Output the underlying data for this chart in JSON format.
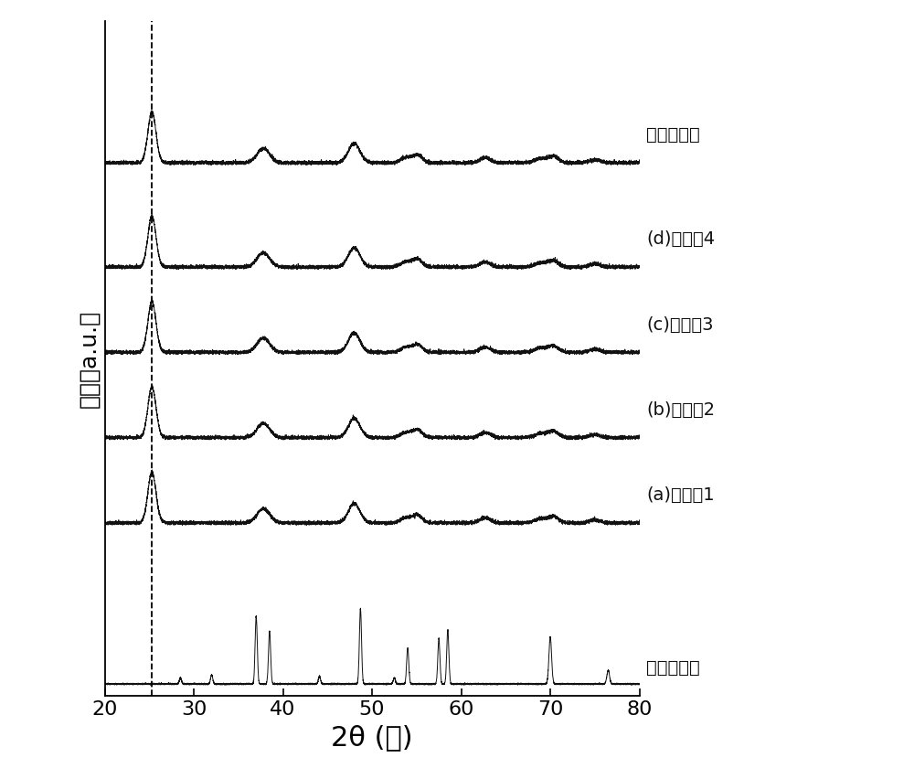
{
  "xlabel": "2θ (度)",
  "ylabel": "强度（a.u.）",
  "xlim": [
    20,
    80
  ],
  "xlabel_fontsize": 22,
  "ylabel_fontsize": 18,
  "tick_fontsize": 16,
  "label_fontsize": 13,
  "dashed_line_x": 25.3,
  "background_color": "#ffffff",
  "curve_color": "#111111",
  "labels": [
    "纯二氧化馒",
    "(d)实施兦4",
    "(c)实施兦3",
    "(b)实施兦2",
    "(a)实施兦1",
    "纯二硫化馒"
  ],
  "offsets": [
    5.5,
    4.4,
    3.5,
    2.6,
    1.7,
    0.0
  ],
  "tio2_peaks": [
    25.3,
    37.8,
    48.0,
    53.8,
    55.1,
    62.7,
    68.8,
    70.3,
    75.0
  ],
  "tio2_heights": [
    1.0,
    0.28,
    0.38,
    0.1,
    0.15,
    0.1,
    0.08,
    0.13,
    0.06
  ],
  "tio2_widths": [
    0.45,
    0.7,
    0.65,
    0.6,
    0.55,
    0.6,
    0.6,
    0.6,
    0.6
  ],
  "tis2_peaks": [
    28.5,
    32.0,
    37.0,
    38.5,
    44.1,
    48.7,
    52.5,
    54.0,
    57.5,
    58.5,
    70.0,
    76.5
  ],
  "tis2_heights": [
    0.08,
    0.12,
    0.9,
    0.7,
    0.1,
    1.0,
    0.08,
    0.48,
    0.6,
    0.72,
    0.62,
    0.18
  ],
  "tis2_widths": [
    0.12,
    0.12,
    0.12,
    0.12,
    0.12,
    0.12,
    0.12,
    0.12,
    0.12,
    0.12,
    0.15,
    0.15
  ]
}
